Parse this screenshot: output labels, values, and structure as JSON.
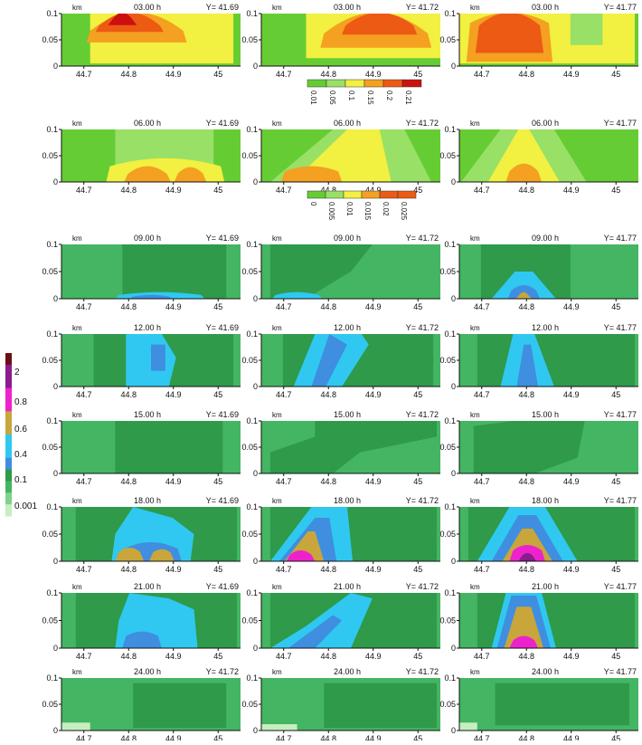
{
  "colors": {
    "green_mid": "#66cc33",
    "green_light": "#99e066",
    "yellow": "#f2f040",
    "orange": "#f4a020",
    "red_orange": "#ec5a14",
    "red": "#cc1010",
    "dark_green": "#2e9a4a",
    "med_green": "#44b562",
    "light_green": "#7fd28e",
    "pale_green": "#c6efc0",
    "light_blue": "#30c8f0",
    "blue": "#3f8ee0",
    "tan": "#c8a63c",
    "magenta": "#ee22cc",
    "purple": "#8a1c8e",
    "dark_red": "#6a1014"
  },
  "legends": [
    {
      "labels": [
        "0.01",
        "0.05",
        "0.1",
        "0.15",
        "0.2",
        "0.21"
      ]
    },
    {
      "labels": [
        "0",
        "0.005",
        "0.01",
        "0.015",
        "0.02",
        "0.025"
      ]
    },
    {
      "labels": [
        "0.001",
        "0.1",
        "0.4",
        "0.6",
        "0.8",
        "2"
      ]
    }
  ],
  "chart_data": [
    {
      "type": "heatmap",
      "time": "03.00 h",
      "y_label": "Y= 41.69",
      "unit": "km",
      "xticks": [
        "44.7",
        "44.8",
        "44.9",
        "45"
      ],
      "yticks": [
        "0",
        "0.05",
        "0.1"
      ],
      "xlim": [
        44.65,
        45.05
      ],
      "ylim": [
        0,
        0.1
      ]
    },
    {
      "type": "heatmap",
      "time": "03.00 h",
      "y_label": "Y= 41.72",
      "unit": "km",
      "xticks": [
        "44.7",
        "44.8",
        "44.9",
        "45"
      ],
      "yticks": [
        "0",
        "0.05",
        "0.1"
      ],
      "xlim": [
        44.65,
        45.05
      ],
      "ylim": [
        0,
        0.1
      ]
    },
    {
      "type": "heatmap",
      "time": "03.00 h",
      "y_label": "Y= 41.77",
      "unit": "km",
      "xticks": [
        "44.7",
        "44.8",
        "44.9",
        "45"
      ],
      "yticks": [
        "0",
        "0.05",
        "0.1"
      ],
      "xlim": [
        44.65,
        45.05
      ],
      "ylim": [
        0,
        0.1
      ]
    },
    {
      "type": "heatmap",
      "time": "06.00 h",
      "y_label": "Y= 41.69",
      "unit": "km",
      "xticks": [
        "44.7",
        "44.8",
        "44.9",
        "45"
      ],
      "yticks": [
        "0",
        "0.05",
        "0.1"
      ],
      "xlim": [
        44.65,
        45.05
      ],
      "ylim": [
        0,
        0.1
      ]
    },
    {
      "type": "heatmap",
      "time": "06.00 h",
      "y_label": "Y= 41.72",
      "unit": "km",
      "xticks": [
        "44.7",
        "44.8",
        "44.9",
        "45"
      ],
      "yticks": [
        "0",
        "0.05",
        "0.1"
      ],
      "xlim": [
        44.65,
        45.05
      ],
      "ylim": [
        0,
        0.1
      ]
    },
    {
      "type": "heatmap",
      "time": "06.00 h",
      "y_label": "Y= 41.77",
      "unit": "km",
      "xticks": [
        "44.7",
        "44.8",
        "44.9",
        "45"
      ],
      "yticks": [
        "0",
        "0.05",
        "0.1"
      ],
      "xlim": [
        44.65,
        45.05
      ],
      "ylim": [
        0,
        0.1
      ]
    },
    {
      "type": "heatmap",
      "time": "09.00 h",
      "y_label": "Y= 41.69",
      "unit": "km",
      "xticks": [
        "44.7",
        "44.8",
        "44.9",
        "45"
      ],
      "yticks": [
        "0",
        "0.05",
        "0.1"
      ],
      "xlim": [
        44.65,
        45.05
      ],
      "ylim": [
        0,
        0.1
      ]
    },
    {
      "type": "heatmap",
      "time": "09.00 h",
      "y_label": "Y= 41.72",
      "unit": "km",
      "xticks": [
        "44.7",
        "44.8",
        "44.9",
        "45"
      ],
      "yticks": [
        "0",
        "0.05",
        "0.1"
      ],
      "xlim": [
        44.65,
        45.05
      ],
      "ylim": [
        0,
        0.1
      ]
    },
    {
      "type": "heatmap",
      "time": "09.00 h",
      "y_label": "Y= 41.77",
      "unit": "km",
      "xticks": [
        "44.7",
        "44.8",
        "44.9",
        "45"
      ],
      "yticks": [
        "0",
        "0.05",
        "0.1"
      ],
      "xlim": [
        44.65,
        45.05
      ],
      "ylim": [
        0,
        0.1
      ]
    },
    {
      "type": "heatmap",
      "time": "12.00 h",
      "y_label": "Y= 41.69",
      "unit": "km",
      "xticks": [
        "44.7",
        "44.8",
        "44.9",
        "45"
      ],
      "yticks": [
        "0",
        "0.05",
        "0.1"
      ],
      "xlim": [
        44.65,
        45.05
      ],
      "ylim": [
        0,
        0.1
      ]
    },
    {
      "type": "heatmap",
      "time": "12.00 h",
      "y_label": "Y= 41.72",
      "unit": "km",
      "xticks": [
        "44.7",
        "44.8",
        "44.9",
        "45"
      ],
      "yticks": [
        "0",
        "0.05",
        "0.1"
      ],
      "xlim": [
        44.65,
        45.05
      ],
      "ylim": [
        0,
        0.1
      ]
    },
    {
      "type": "heatmap",
      "time": "12.00 h",
      "y_label": "Y= 41.77",
      "unit": "km",
      "xticks": [
        "44.7",
        "44.8",
        "44.9",
        "45"
      ],
      "yticks": [
        "0",
        "0.05",
        "0.1"
      ],
      "xlim": [
        44.65,
        45.05
      ],
      "ylim": [
        0,
        0.1
      ]
    },
    {
      "type": "heatmap",
      "time": "15.00 h",
      "y_label": "Y= 41.69",
      "unit": "km",
      "xticks": [
        "44.7",
        "44.8",
        "44.9",
        "45"
      ],
      "yticks": [
        "0",
        "0.05",
        "0.1"
      ],
      "xlim": [
        44.65,
        45.05
      ],
      "ylim": [
        0,
        0.1
      ]
    },
    {
      "type": "heatmap",
      "time": "15.00 h",
      "y_label": "Y= 41.72",
      "unit": "km",
      "xticks": [
        "44.7",
        "44.8",
        "44.9",
        "45"
      ],
      "yticks": [
        "0",
        "0.05",
        "0.1"
      ],
      "xlim": [
        44.65,
        45.05
      ],
      "ylim": [
        0,
        0.1
      ]
    },
    {
      "type": "heatmap",
      "time": "15.00 h",
      "y_label": "Y= 41.77",
      "unit": "km",
      "xticks": [
        "44.7",
        "44.8",
        "44.9",
        "45"
      ],
      "yticks": [
        "0",
        "0.05",
        "0.1"
      ],
      "xlim": [
        44.65,
        45.05
      ],
      "ylim": [
        0,
        0.1
      ]
    },
    {
      "type": "heatmap",
      "time": "18.00 h",
      "y_label": "Y= 41.69",
      "unit": "km",
      "xticks": [
        "44.7",
        "44.8",
        "44.9",
        "45"
      ],
      "yticks": [
        "0",
        "0.05",
        "0.1"
      ],
      "xlim": [
        44.65,
        45.05
      ],
      "ylim": [
        0,
        0.1
      ]
    },
    {
      "type": "heatmap",
      "time": "18.00 h",
      "y_label": "Y= 41.72",
      "unit": "km",
      "xticks": [
        "44.7",
        "44.8",
        "44.9",
        "45"
      ],
      "yticks": [
        "0",
        "0.05",
        "0.1"
      ],
      "xlim": [
        44.65,
        45.05
      ],
      "ylim": [
        0,
        0.1
      ]
    },
    {
      "type": "heatmap",
      "time": "18.00 h",
      "y_label": "Y= 41.77",
      "unit": "km",
      "xticks": [
        "44.7",
        "44.8",
        "44.9",
        "45"
      ],
      "yticks": [
        "0",
        "0.05",
        "0.1"
      ],
      "xlim": [
        44.65,
        45.05
      ],
      "ylim": [
        0,
        0.1
      ]
    },
    {
      "type": "heatmap",
      "time": "21.00 h",
      "y_label": "Y= 41.69",
      "unit": "km",
      "xticks": [
        "44.7",
        "44.8",
        "44.9",
        "45"
      ],
      "yticks": [
        "0",
        "0.05",
        "0.1"
      ],
      "xlim": [
        44.65,
        45.05
      ],
      "ylim": [
        0,
        0.1
      ]
    },
    {
      "type": "heatmap",
      "time": "21.00 h",
      "y_label": "Y= 41.72",
      "unit": "km",
      "xticks": [
        "44.7",
        "44.8",
        "44.9",
        "45"
      ],
      "yticks": [
        "0",
        "0.05",
        "0.1"
      ],
      "xlim": [
        44.65,
        45.05
      ],
      "ylim": [
        0,
        0.1
      ]
    },
    {
      "type": "heatmap",
      "time": "21.00 h",
      "y_label": "Y= 41.77",
      "unit": "km",
      "xticks": [
        "44.7",
        "44.8",
        "44.9",
        "45"
      ],
      "yticks": [
        "0",
        "0.05",
        "0.1"
      ],
      "xlim": [
        44.65,
        45.05
      ],
      "ylim": [
        0,
        0.1
      ]
    },
    {
      "type": "heatmap",
      "time": "24.00 h",
      "y_label": "Y= 41.72",
      "unit": "km",
      "xticks": [
        "44.7",
        "44.8",
        "44.9",
        "45"
      ],
      "yticks": [
        "0",
        "0.05",
        "0.1"
      ],
      "xlim": [
        44.65,
        45.05
      ],
      "ylim": [
        0,
        0.1
      ]
    },
    {
      "type": "heatmap",
      "time": "24.00 h",
      "y_label": "Y= 41.72",
      "unit": "km",
      "xticks": [
        "44.7",
        "44.8",
        "44.9",
        "45"
      ],
      "yticks": [
        "0",
        "0.05",
        "0.1"
      ],
      "xlim": [
        44.65,
        45.05
      ],
      "ylim": [
        0,
        0.1
      ]
    },
    {
      "type": "heatmap",
      "time": "24.00 h",
      "y_label": "Y= 41.77",
      "unit": "km",
      "xticks": [
        "44.7",
        "44.8",
        "44.9",
        "45"
      ],
      "yticks": [
        "0",
        "0.05",
        "0.1"
      ],
      "xlim": [
        44.65,
        45.05
      ],
      "ylim": [
        0,
        0.1
      ]
    }
  ]
}
